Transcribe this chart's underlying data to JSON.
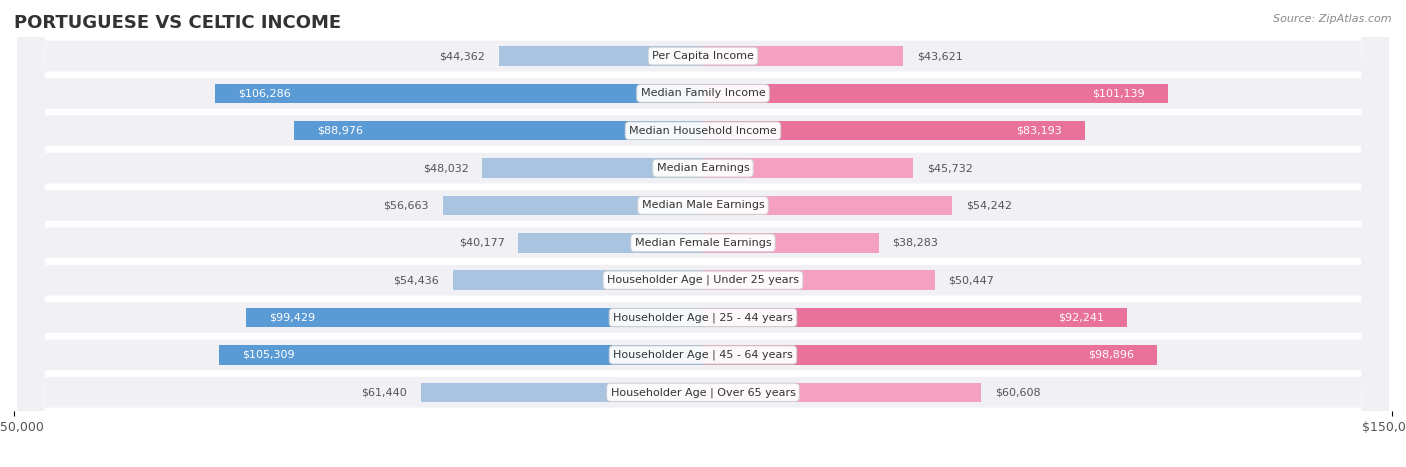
{
  "title": "PORTUGUESE VS CELTIC INCOME",
  "source": "Source: ZipAtlas.com",
  "categories": [
    "Per Capita Income",
    "Median Family Income",
    "Median Household Income",
    "Median Earnings",
    "Median Male Earnings",
    "Median Female Earnings",
    "Householder Age | Under 25 years",
    "Householder Age | 25 - 44 years",
    "Householder Age | 45 - 64 years",
    "Householder Age | Over 65 years"
  ],
  "portuguese_values": [
    44362,
    106286,
    88976,
    48032,
    56663,
    40177,
    54436,
    99429,
    105309,
    61440
  ],
  "celtic_values": [
    43621,
    101139,
    83193,
    45732,
    54242,
    38283,
    50447,
    92241,
    98896,
    60608
  ],
  "max_value": 150000,
  "portuguese_color_light": "#a8c4e0",
  "portuguese_color_dark": "#5b9bd5",
  "celtic_color_light": "#f4a0c0",
  "celtic_color_dark": "#e8729a",
  "label_color_white": "#ffffff",
  "label_color_dark": "#555555",
  "bar_height": 0.52,
  "row_bg_color": "#f0f0f5",
  "background_color": "#ffffff",
  "threshold_pct": 0.52,
  "title_fontsize": 13,
  "source_fontsize": 8,
  "label_fontsize": 8,
  "cat_fontsize": 8
}
